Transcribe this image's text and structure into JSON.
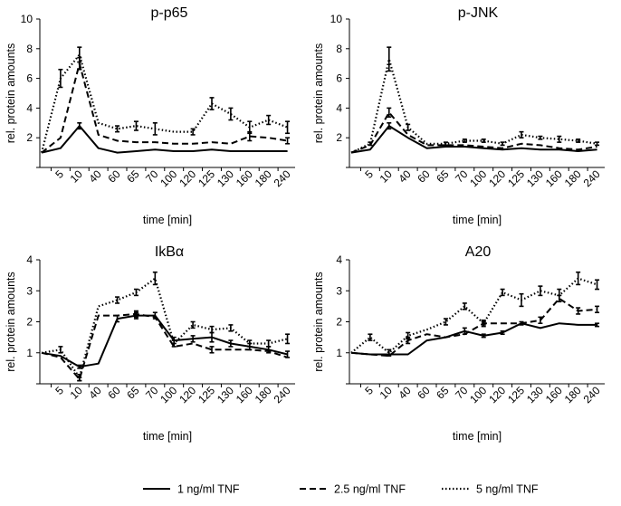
{
  "figure": {
    "legend": [
      {
        "label": "1 ng/ml TNF",
        "style": "solid"
      },
      {
        "label": "2.5 ng/ml TNF",
        "style": "dashed"
      },
      {
        "label": "5 ng/ml TNF",
        "style": "dotted"
      }
    ]
  },
  "chart_data": [
    {
      "type": "line",
      "title": "p-p65",
      "xlabel": "time [min]",
      "ylabel": "rel. protein amounts",
      "ylim": [
        0,
        10
      ],
      "yticks": [
        2,
        4,
        6,
        8,
        10
      ],
      "categories": [
        "0",
        "5",
        "10",
        "40",
        "60",
        "65",
        "70",
        "100",
        "120",
        "125",
        "130",
        "160",
        "180",
        "240"
      ],
      "x_tick_labels": [
        "5",
        "10",
        "40",
        "60",
        "65",
        "70",
        "100",
        "120",
        "125",
        "130",
        "160",
        "180",
        "240"
      ],
      "series": [
        {
          "name": "1 ng/ml TNF",
          "style": "solid",
          "values": [
            1.0,
            1.3,
            2.8,
            1.3,
            1.0,
            1.1,
            1.2,
            1.1,
            1.1,
            1.2,
            1.1,
            1.1,
            1.1,
            1.1
          ],
          "errors": [
            0,
            0,
            0.2,
            0,
            0,
            0,
            0,
            0,
            0,
            0,
            0,
            0,
            0,
            0
          ]
        },
        {
          "name": "2.5 ng/ml TNF",
          "style": "dashed",
          "values": [
            1.0,
            2.0,
            7.0,
            2.2,
            1.8,
            1.7,
            1.7,
            1.6,
            1.6,
            1.7,
            1.6,
            2.1,
            2.0,
            1.8
          ],
          "errors": [
            0,
            0,
            0.4,
            0,
            0,
            0,
            0,
            0,
            0,
            0,
            0,
            0.3,
            0,
            0.2
          ]
        },
        {
          "name": "5 ng/ml TNF",
          "style": "dotted",
          "values": [
            1.0,
            6.0,
            7.6,
            3.0,
            2.6,
            2.8,
            2.6,
            2.4,
            2.4,
            4.3,
            3.6,
            2.7,
            3.2,
            2.7
          ],
          "errors": [
            0,
            0.6,
            0.5,
            0,
            0.2,
            0.3,
            0.4,
            0,
            0.2,
            0.4,
            0.4,
            0.4,
            0.3,
            0.4
          ]
        }
      ]
    },
    {
      "type": "line",
      "title": "p-JNK",
      "xlabel": "time [min]",
      "ylabel": "rel. protein amounts",
      "ylim": [
        0,
        10
      ],
      "yticks": [
        2,
        4,
        6,
        8,
        10
      ],
      "categories": [
        "0",
        "5",
        "10",
        "40",
        "60",
        "65",
        "70",
        "100",
        "120",
        "125",
        "130",
        "160",
        "180",
        "240"
      ],
      "x_tick_labels": [
        "5",
        "10",
        "40",
        "60",
        "65",
        "70",
        "100",
        "120",
        "125",
        "130",
        "160",
        "180",
        "240"
      ],
      "series": [
        {
          "name": "1 ng/ml TNF",
          "style": "solid",
          "values": [
            1.0,
            1.2,
            2.8,
            2.0,
            1.3,
            1.4,
            1.4,
            1.3,
            1.2,
            1.3,
            1.2,
            1.2,
            1.1,
            1.2
          ],
          "errors": [
            0,
            0,
            0.2,
            0,
            0,
            0,
            0,
            0,
            0,
            0,
            0,
            0,
            0,
            0
          ]
        },
        {
          "name": "2.5 ng/ml TNF",
          "style": "dashed",
          "values": [
            1.0,
            1.5,
            3.7,
            2.2,
            1.5,
            1.5,
            1.5,
            1.4,
            1.3,
            1.6,
            1.5,
            1.3,
            1.2,
            1.4
          ],
          "errors": [
            0,
            0,
            0.3,
            0,
            0,
            0,
            0,
            0,
            0,
            0,
            0,
            0,
            0,
            0
          ]
        },
        {
          "name": "5 ng/ml TNF",
          "style": "dotted",
          "values": [
            1.0,
            1.6,
            7.3,
            2.7,
            1.6,
            1.6,
            1.8,
            1.8,
            1.6,
            2.2,
            2.0,
            1.9,
            1.8,
            1.6
          ],
          "errors": [
            0,
            0.1,
            0.8,
            0.2,
            0,
            0.1,
            0.1,
            0.1,
            0.1,
            0.2,
            0.1,
            0.2,
            0.1,
            0.1
          ]
        }
      ]
    },
    {
      "type": "line",
      "title": "IkBα",
      "xlabel": "time [min]",
      "ylabel": "rel. protein amounts",
      "ylim": [
        0,
        4
      ],
      "yticks": [
        1,
        2,
        3,
        4
      ],
      "categories": [
        "0",
        "5",
        "10",
        "40",
        "60",
        "65",
        "70",
        "100",
        "120",
        "125",
        "130",
        "160",
        "180",
        "240"
      ],
      "x_tick_labels": [
        "5",
        "10",
        "40",
        "60",
        "65",
        "70",
        "100",
        "120",
        "125",
        "130",
        "160",
        "180",
        "240"
      ],
      "series": [
        {
          "name": "1 ng/ml TNF",
          "style": "solid",
          "values": [
            1.0,
            0.9,
            0.55,
            0.65,
            2.1,
            2.2,
            2.2,
            1.4,
            1.45,
            1.5,
            1.3,
            1.2,
            1.1,
            0.95
          ],
          "errors": [
            0,
            0,
            0.05,
            0,
            0.1,
            0.1,
            0.1,
            0.1,
            0.1,
            0.15,
            0.1,
            0.1,
            0.1,
            0.1
          ]
        },
        {
          "name": "2.5 ng/ml TNF",
          "style": "dashed",
          "values": [
            1.0,
            0.85,
            0.15,
            2.2,
            2.2,
            2.25,
            2.15,
            1.2,
            1.3,
            1.1,
            1.1,
            1.1,
            1.05,
            0.85
          ],
          "errors": [
            0,
            0,
            0.05,
            0,
            0,
            0.1,
            0,
            0,
            0,
            0.1,
            0,
            0,
            0,
            0
          ]
        },
        {
          "name": "5 ng/ml TNF",
          "style": "dotted",
          "values": [
            1.0,
            1.1,
            0.2,
            2.5,
            2.7,
            2.95,
            3.4,
            1.3,
            1.9,
            1.75,
            1.8,
            1.3,
            1.3,
            1.45
          ],
          "errors": [
            0,
            0.1,
            0.1,
            0,
            0.1,
            0.1,
            0.2,
            0.1,
            0.1,
            0.1,
            0.1,
            0.1,
            0.1,
            0.15
          ]
        }
      ]
    },
    {
      "type": "line",
      "title": "A20",
      "xlabel": "time [min]",
      "ylabel": "rel. protein amounts",
      "ylim": [
        0,
        4
      ],
      "yticks": [
        1,
        2,
        3,
        4
      ],
      "categories": [
        "0",
        "5",
        "10",
        "40",
        "60",
        "65",
        "70",
        "100",
        "120",
        "125",
        "130",
        "160",
        "180",
        "240"
      ],
      "x_tick_labels": [
        "5",
        "10",
        "40",
        "60",
        "65",
        "70",
        "100",
        "120",
        "125",
        "130",
        "160",
        "180",
        "240"
      ],
      "series": [
        {
          "name": "1 ng/ml TNF",
          "style": "solid",
          "values": [
            1.0,
            0.95,
            0.95,
            0.95,
            1.4,
            1.5,
            1.7,
            1.55,
            1.65,
            1.95,
            1.8,
            1.95,
            1.9,
            1.9
          ],
          "errors": [
            0,
            0,
            0,
            0,
            0,
            0,
            0.1,
            0.05,
            0.05,
            0.05,
            0,
            0,
            0,
            0.05
          ]
        },
        {
          "name": "2.5 ng/ml TNF",
          "style": "dashed",
          "values": [
            1.0,
            0.95,
            0.9,
            1.4,
            1.6,
            1.5,
            1.6,
            1.95,
            1.95,
            1.95,
            2.05,
            2.75,
            2.35,
            2.4
          ],
          "errors": [
            0,
            0,
            0,
            0.1,
            0,
            0,
            0,
            0.05,
            0,
            0,
            0.1,
            0.1,
            0.1,
            0.1
          ]
        },
        {
          "name": "5 ng/ml TNF",
          "style": "dotted",
          "values": [
            1.0,
            1.5,
            1.0,
            1.55,
            1.75,
            2.0,
            2.5,
            1.95,
            2.95,
            2.7,
            3.0,
            2.85,
            3.4,
            3.2
          ],
          "errors": [
            0,
            0.1,
            0.1,
            0.1,
            0,
            0.1,
            0.1,
            0.1,
            0.1,
            0.2,
            0.15,
            0.2,
            0.2,
            0.15
          ]
        }
      ]
    }
  ]
}
